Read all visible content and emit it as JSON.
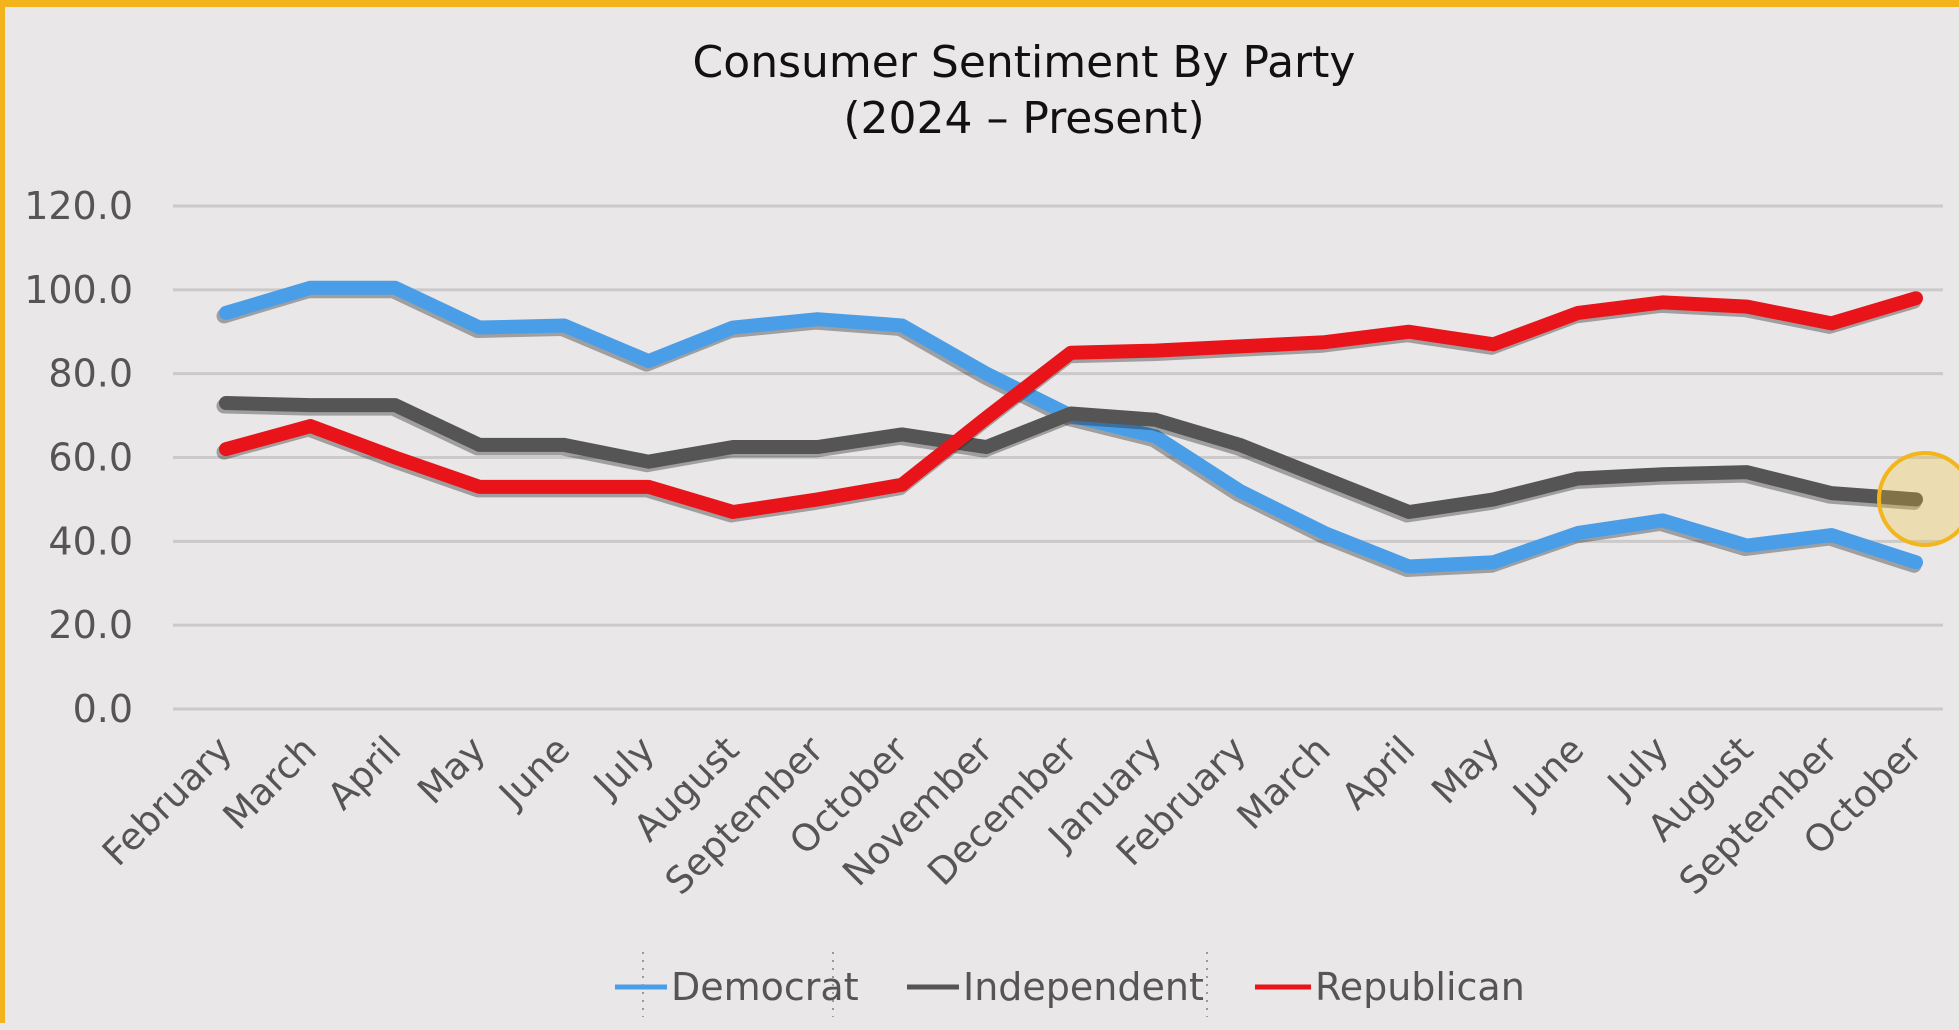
{
  "chart_data": {
    "type": "line",
    "title": "Consumer Sentiment By Party",
    "subtitle": "(2024 – Present)",
    "xlabel": "",
    "ylabel": "",
    "ylim": [
      0,
      120
    ],
    "yticks": [
      "0.0",
      "20.0",
      "40.0",
      "60.0",
      "80.0",
      "100.0",
      "120.0"
    ],
    "grid": true,
    "legend_position": "bottom",
    "categories": [
      "February",
      "March",
      "April",
      "May",
      "June",
      "July",
      "August",
      "September",
      "October",
      "November",
      "December",
      "January",
      "February",
      "March",
      "April",
      "May",
      "June",
      "July",
      "August",
      "September",
      "October"
    ],
    "series": [
      {
        "name": "Democrat",
        "color": "#4a9ee8",
        "values": [
          94.5,
          100.5,
          100.5,
          91.0,
          91.5,
          83.0,
          91.0,
          93.0,
          91.5,
          80.0,
          70.0,
          65.0,
          52.0,
          42.0,
          34.0,
          35.0,
          42.0,
          45.0,
          39.0,
          41.5,
          35.0
        ]
      },
      {
        "name": "Independent",
        "color": "#555555",
        "values": [
          73.0,
          72.5,
          72.5,
          63.0,
          63.0,
          59.0,
          62.5,
          62.5,
          65.5,
          62.5,
          70.5,
          69.0,
          63.0,
          55.0,
          47.0,
          50.0,
          55.0,
          56.0,
          56.5,
          51.5,
          50.0
        ]
      },
      {
        "name": "Republican",
        "color": "#e8141a",
        "values": [
          62.0,
          67.5,
          60.0,
          53.0,
          53.0,
          53.0,
          47.0,
          50.0,
          53.5,
          69.5,
          85.0,
          85.5,
          86.5,
          87.5,
          90.0,
          87.0,
          94.5,
          97.0,
          96.0,
          92.0,
          98.0
        ]
      }
    ]
  },
  "annotation_icon": "highlight-circle-icon"
}
